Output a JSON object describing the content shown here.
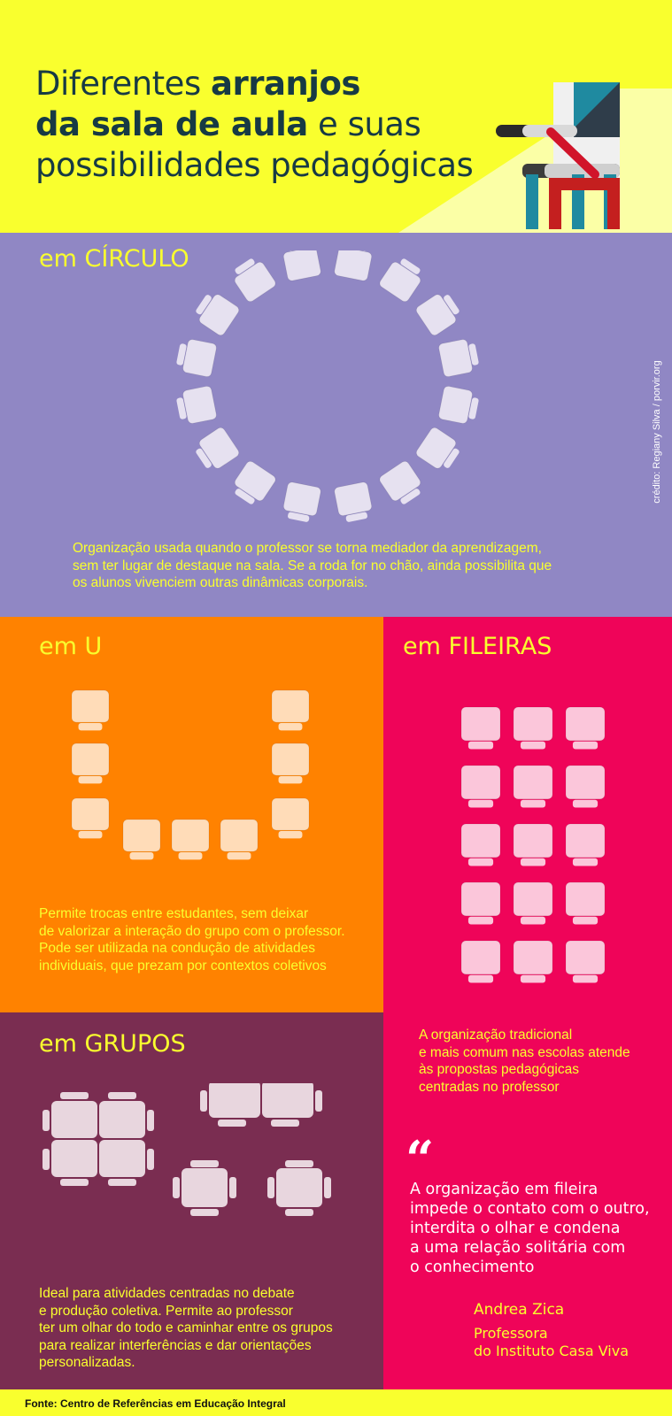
{
  "header": {
    "title_line1_a": "Diferentes ",
    "title_line1_b": "arranjos",
    "title_line2_a": "da sala de aula",
    "title_line2_b": " e suas",
    "title_line3": "possibilidades pedagógicas",
    "illustration_icon": "chair-and-desk-icon"
  },
  "circle": {
    "title": "em CÍRCULO",
    "description_lines": [
      "Organização usada quando o professor se torna mediador da aprendizagem,",
      "sem ter lugar de destaque na sala. Se a roda for no chão, ainda possibilita que",
      "os alunos vivenciem outras dinâmicas corporais."
    ],
    "credit": "crédito: Regiany Silva / porvir.org",
    "desk_count": 16
  },
  "u_shape": {
    "title": "em U",
    "description_lines": [
      "Permite trocas entre estudantes, sem deixar",
      "de valorizar a interação do grupo com o professor.",
      "Pode ser utilizada na condução de atividades",
      "individuais, que prezam por contextos coletivos"
    ],
    "desk_count": 9
  },
  "rows": {
    "title": "em FILEIRAS",
    "description_lines": [
      "A organização tradicional",
      "e mais comum nas escolas atende",
      "às propostas pedagógicas",
      "centradas no professor"
    ],
    "grid_rows": 5,
    "grid_cols": 3
  },
  "groups": {
    "title": "em GRUPOS",
    "description_lines": [
      "Ideal para atividades centradas no debate",
      "e produção coletiva. Permite ao professor",
      "ter um olhar do todo e caminhar entre os grupos",
      "para realizar interferências e dar orientações",
      "personalizadas."
    ]
  },
  "quote": {
    "mark": "“",
    "lines": [
      "A organização em fileira",
      "impede o contato com o outro,",
      "interdita o olhar e condena",
      "a uma relação solitária com",
      "o conhecimento"
    ],
    "author": "Andrea Zica",
    "role_lines": [
      "Professora",
      "do Instituto Casa Viva"
    ]
  },
  "footer": {
    "source": "Fonte: Centro de Referências em Educação Integral"
  },
  "colors": {
    "yellow": "#f9ff2e",
    "purple": "#9087c4",
    "orange": "#ff8200",
    "pink": "#ef0459",
    "wine": "#7a2d51",
    "desk_light": "#e6e1f0",
    "desk_peach": "#ffdcb8",
    "desk_pink": "#fbc6da",
    "desk_group": "#e8d6de"
  }
}
